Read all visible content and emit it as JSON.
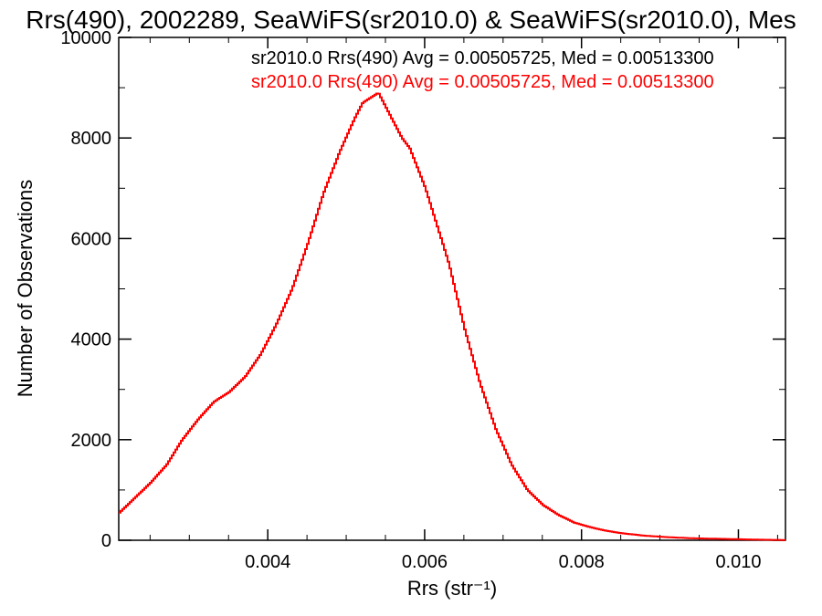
{
  "chart_data": {
    "type": "line",
    "step": true,
    "title": "Rrs(490), 2002289, SeaWiFS(sr2010.0) & SeaWiFS(sr2010.0), Mes",
    "xlabel": "Rrs (str⁻¹)",
    "ylabel": "Number of Observations",
    "xlim": [
      0.0021,
      0.0106
    ],
    "ylim": [
      0,
      10000
    ],
    "x_ticks": [
      {
        "value": 0.004,
        "label": "0.004"
      },
      {
        "value": 0.006,
        "label": "0.006"
      },
      {
        "value": 0.008,
        "label": "0.008"
      },
      {
        "value": 0.01,
        "label": "0.010"
      }
    ],
    "y_ticks": [
      {
        "value": 0,
        "label": "0"
      },
      {
        "value": 2000,
        "label": "2000"
      },
      {
        "value": 4000,
        "label": "4000"
      },
      {
        "value": 6000,
        "label": "6000"
      },
      {
        "value": 8000,
        "label": "8000"
      },
      {
        "value": 10000,
        "label": "10000"
      }
    ],
    "annotations": [
      {
        "text": "sr2010.0 Rrs(490) Avg = 0.00505725, Med = 0.00513300",
        "color": "#000000"
      },
      {
        "text": "sr2010.0 Rrs(490) Avg = 0.00505725, Med = 0.00513300",
        "color": "#ff0000"
      }
    ],
    "series": [
      {
        "color": "#ff0000",
        "x": [
          0.0021,
          0.0023,
          0.0025,
          0.0027,
          0.0029,
          0.0031,
          0.0033,
          0.0035,
          0.0037,
          0.0039,
          0.0041,
          0.0043,
          0.0045,
          0.0047,
          0.0049,
          0.0051,
          0.0052,
          0.0053,
          0.0054,
          0.0055,
          0.0056,
          0.0057,
          0.0058,
          0.0059,
          0.006,
          0.0061,
          0.0062,
          0.0063,
          0.0065,
          0.0067,
          0.0069,
          0.0071,
          0.0073,
          0.0075,
          0.0077,
          0.0079,
          0.0081,
          0.0083,
          0.0085,
          0.0088,
          0.0091,
          0.0094,
          0.0097,
          0.01,
          0.0103,
          0.0106
        ],
        "y": [
          550,
          850,
          1150,
          1500,
          2000,
          2400,
          2750,
          2950,
          3250,
          3700,
          4300,
          5000,
          5900,
          6900,
          7700,
          8400,
          8700,
          8800,
          8900,
          8600,
          8300,
          8000,
          7800,
          7400,
          7000,
          6500,
          6000,
          5500,
          4200,
          3100,
          2200,
          1500,
          1000,
          700,
          500,
          350,
          260,
          190,
          140,
          90,
          60,
          40,
          30,
          20,
          10,
          5
        ]
      }
    ]
  }
}
